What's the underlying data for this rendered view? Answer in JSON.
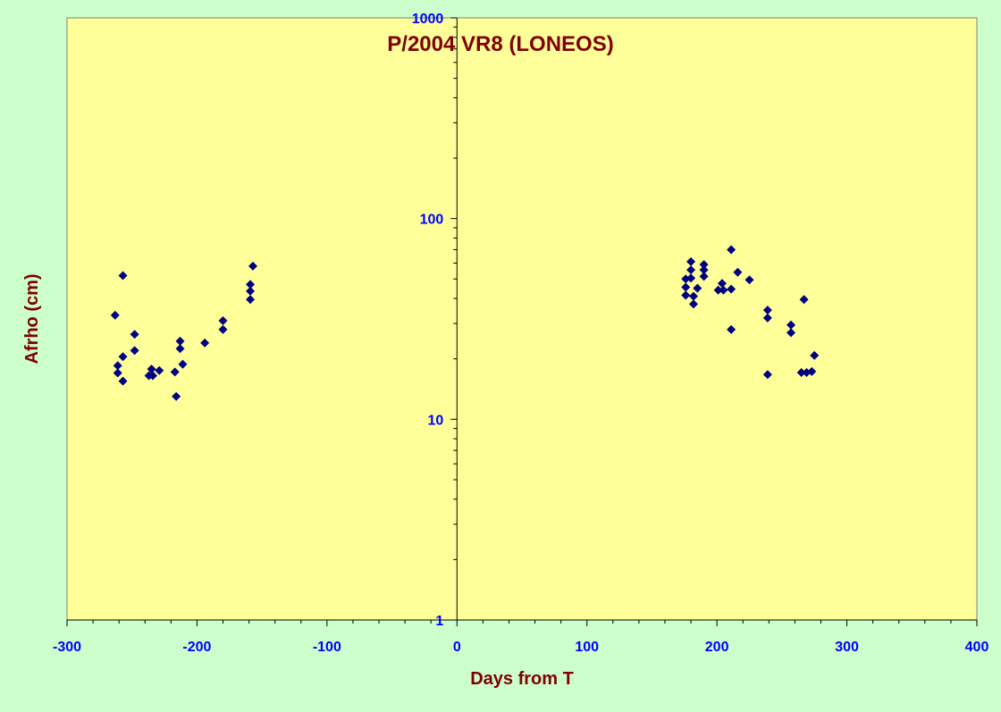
{
  "chart_data": {
    "type": "scatter",
    "title": "P/2004 VR8 (LONEOS)",
    "xlabel": "Days from T",
    "ylabel": "Afrho (cm)",
    "x_scale": "linear",
    "y_scale": "log",
    "xlim": [
      -300,
      400
    ],
    "ylim": [
      1,
      1000
    ],
    "x_ticks": [
      -300,
      -200,
      -100,
      0,
      100,
      200,
      300,
      400
    ],
    "x_tick_labels": [
      "-300",
      "-200",
      "-100",
      "0",
      "100",
      "200",
      "300",
      "400"
    ],
    "y_ticks": [
      1,
      10,
      100,
      1000
    ],
    "y_tick_labels": [
      "1",
      "10",
      "100",
      "1000"
    ],
    "grid": false,
    "legend": "none",
    "colors": {
      "background": "#ccffcc",
      "plot_area": "#ffff99",
      "marker": "#000080",
      "title": "#800000",
      "tick_labels": "#0000ff",
      "axis": "#000000"
    },
    "points": [
      {
        "x": -263,
        "y": 33
      },
      {
        "x": -261,
        "y": 18.5
      },
      {
        "x": -261,
        "y": 17
      },
      {
        "x": -257,
        "y": 52
      },
      {
        "x": -257,
        "y": 20.5
      },
      {
        "x": -257,
        "y": 15.5
      },
      {
        "x": -248,
        "y": 26.5
      },
      {
        "x": -248,
        "y": 22
      },
      {
        "x": -237,
        "y": 16.5
      },
      {
        "x": -235,
        "y": 17.8
      },
      {
        "x": -234,
        "y": 16.5
      },
      {
        "x": -229,
        "y": 17.5
      },
      {
        "x": -217,
        "y": 17.2
      },
      {
        "x": -216,
        "y": 13
      },
      {
        "x": -213,
        "y": 24.5
      },
      {
        "x": -213,
        "y": 22.5
      },
      {
        "x": -211,
        "y": 18.8
      },
      {
        "x": -194,
        "y": 24
      },
      {
        "x": -180,
        "y": 31
      },
      {
        "x": -180,
        "y": 28
      },
      {
        "x": -159,
        "y": 47
      },
      {
        "x": -159,
        "y": 43.5
      },
      {
        "x": -159,
        "y": 39.5
      },
      {
        "x": -157,
        "y": 58
      },
      {
        "x": 176,
        "y": 50
      },
      {
        "x": 176,
        "y": 45.5
      },
      {
        "x": 176,
        "y": 41.5
      },
      {
        "x": 180,
        "y": 61
      },
      {
        "x": 180,
        "y": 55.5
      },
      {
        "x": 180,
        "y": 50.5
      },
      {
        "x": 182,
        "y": 41
      },
      {
        "x": 182,
        "y": 37.5
      },
      {
        "x": 185,
        "y": 45
      },
      {
        "x": 190,
        "y": 59
      },
      {
        "x": 190,
        "y": 55.5
      },
      {
        "x": 190,
        "y": 51.5
      },
      {
        "x": 201,
        "y": 44
      },
      {
        "x": 204,
        "y": 47.5
      },
      {
        "x": 205,
        "y": 44
      },
      {
        "x": 211,
        "y": 70
      },
      {
        "x": 211,
        "y": 44.5
      },
      {
        "x": 211,
        "y": 28
      },
      {
        "x": 216,
        "y": 54
      },
      {
        "x": 225,
        "y": 49.5
      },
      {
        "x": 239,
        "y": 35
      },
      {
        "x": 239,
        "y": 32
      },
      {
        "x": 239,
        "y": 16.7
      },
      {
        "x": 257,
        "y": 29.5
      },
      {
        "x": 257,
        "y": 27
      },
      {
        "x": 265,
        "y": 17.1
      },
      {
        "x": 267,
        "y": 39.5
      },
      {
        "x": 269,
        "y": 17.1
      },
      {
        "x": 273,
        "y": 17.3
      },
      {
        "x": 275,
        "y": 20.8
      }
    ]
  }
}
